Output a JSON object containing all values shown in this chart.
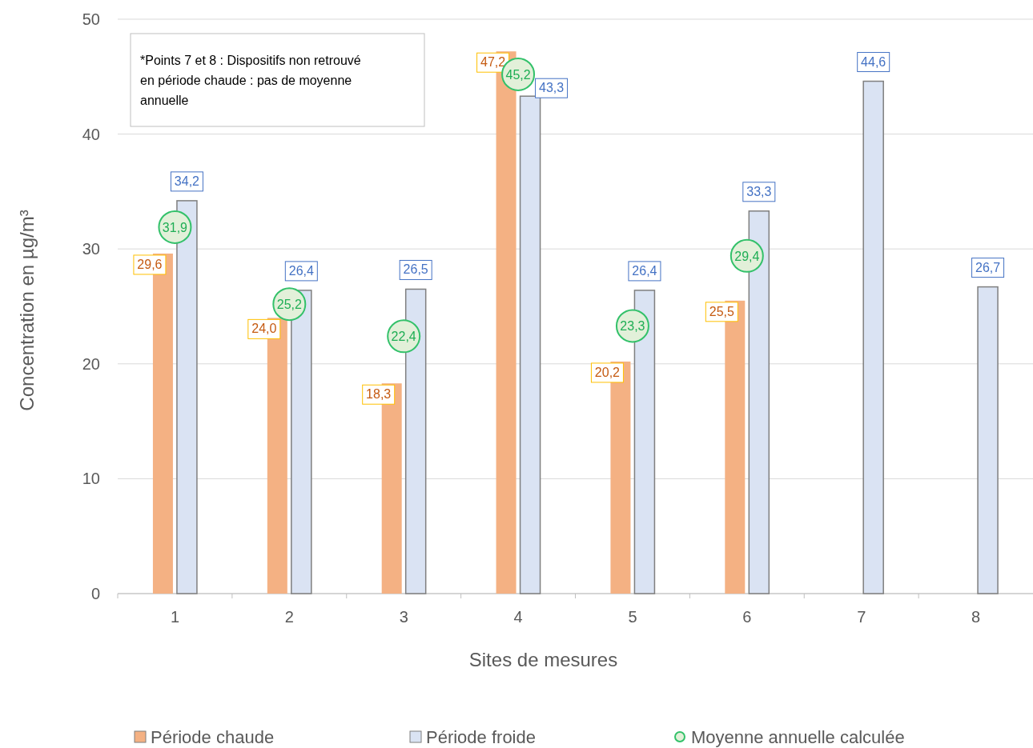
{
  "chart_data": {
    "type": "bar",
    "xlabel": "Sites de mesures",
    "ylabel": "Concentration en µg/m³",
    "categories": [
      "1",
      "2",
      "3",
      "4",
      "5",
      "6",
      "7",
      "8"
    ],
    "series": [
      {
        "name": "Période chaude",
        "color": "#f4b183",
        "values": [
          29.6,
          24.0,
          18.3,
          47.2,
          20.2,
          25.5,
          null,
          null
        ],
        "value_labels": [
          "29,6",
          "24,0",
          "18,3",
          "47,2",
          "20,2",
          "25,5",
          null,
          null
        ]
      },
      {
        "name": "Période froide",
        "color": "#dae3f3",
        "values": [
          34.2,
          26.4,
          26.5,
          43.3,
          26.4,
          33.3,
          44.6,
          26.7
        ],
        "value_labels": [
          "34,2",
          "26,4",
          "26,5",
          "43,3",
          "26,4",
          "33,3",
          "44,6",
          "26,7"
        ]
      },
      {
        "name": "Moyenne annuelle calculée",
        "type": "scatter",
        "color": "#e2f0d9",
        "x": [
          "1",
          "2",
          "3",
          "4",
          "5",
          "6"
        ],
        "values": [
          31.9,
          25.2,
          22.4,
          45.2,
          23.3,
          29.4
        ],
        "value_labels": [
          "31,9",
          "25,2",
          "22,4",
          "45,2",
          "23,3",
          "29,4"
        ]
      }
    ],
    "ylim": [
      0,
      50
    ],
    "yticks": [
      0,
      10,
      20,
      30,
      40,
      50
    ],
    "grid": "y",
    "legend": "bottom",
    "marker": "circle",
    "annotations": [
      "*Points 7 et 8 : Dispositifs non retrouvé en période chaude : pas de moyenne annuelle"
    ]
  }
}
